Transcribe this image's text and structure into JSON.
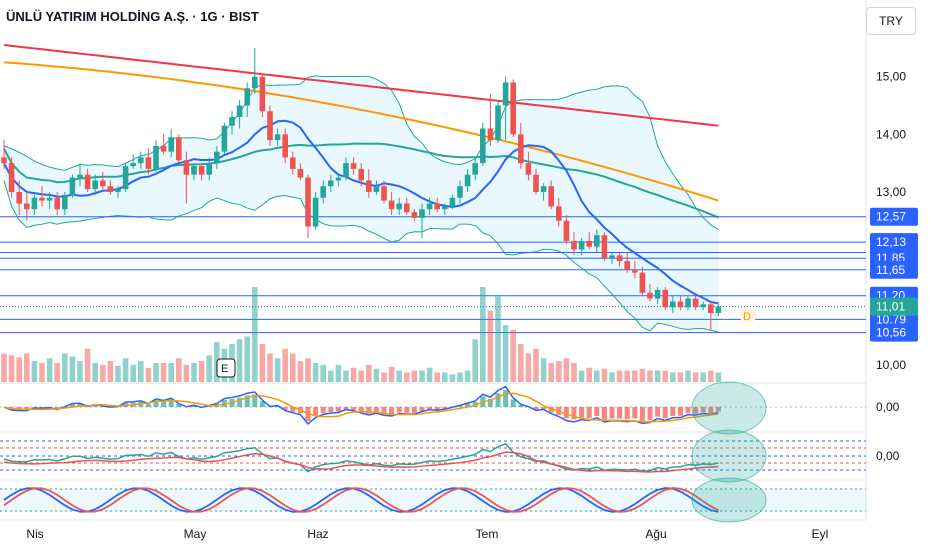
{
  "header": {
    "title": "ÜNLÜ YATIRIM HOLDİNG A.Ş. · 1G · BIST",
    "currency": "TRY"
  },
  "colors": {
    "up": "#26a69a",
    "down": "#ef5350",
    "ma_fast": "#f23645",
    "ma_slow": "#ff9800",
    "ma_mid": "#26a69a",
    "ma_blue": "#2962ff",
    "band": "#26a69a",
    "level": "#2962ff"
  },
  "chart_data": {
    "type": "candlestick",
    "price_axis": {
      "ticks": [
        "15,00",
        "14,00",
        "13,00",
        "10,00"
      ],
      "tick_values": [
        15,
        14,
        13,
        10
      ],
      "range": [
        9.98,
        15.55
      ]
    },
    "time_axis": {
      "labels": [
        "Nis",
        "May",
        "Haz",
        "Tem",
        "Ağu",
        "Eyl"
      ]
    },
    "horizontal_levels": [
      {
        "label": "12,57",
        "value": 12.57
      },
      {
        "label": "12,13",
        "value": 12.13
      },
      {
        "label": "11,85",
        "value": 11.85
      },
      {
        "label": "11,65",
        "value": 11.65
      },
      {
        "label": "11,20",
        "value": 11.2
      },
      {
        "label": "10,79",
        "value": 10.79
      },
      {
        "label": "10,56",
        "value": 10.56
      }
    ],
    "extra_levels": [
      11.95,
      11.01
    ],
    "current_price": {
      "label": "11,01",
      "value": 11.01
    },
    "markers": {
      "earnings": "E",
      "dividend": "D"
    },
    "indicator_labels": [
      "0,00",
      "0,00"
    ],
    "candles": [
      [
        13.6,
        13.9,
        13.4,
        13.5
      ],
      [
        13.5,
        13.6,
        12.9,
        13.0
      ],
      [
        13.0,
        13.2,
        12.6,
        12.8
      ],
      [
        12.8,
        13.0,
        12.5,
        12.7
      ],
      [
        12.7,
        12.95,
        12.6,
        12.9
      ],
      [
        12.9,
        13.1,
        12.75,
        12.85
      ],
      [
        12.85,
        13.0,
        12.7,
        12.9
      ],
      [
        12.9,
        13.0,
        12.6,
        12.7
      ],
      [
        12.7,
        13.0,
        12.6,
        12.95
      ],
      [
        12.95,
        13.3,
        12.9,
        13.25
      ],
      [
        13.25,
        13.5,
        13.1,
        13.3
      ],
      [
        13.3,
        13.4,
        13.0,
        13.05
      ],
      [
        13.05,
        13.3,
        12.95,
        13.2
      ],
      [
        13.2,
        13.35,
        13.0,
        13.1
      ],
      [
        13.1,
        13.2,
        12.95,
        13.0
      ],
      [
        13.0,
        13.1,
        12.9,
        13.05
      ],
      [
        13.05,
        13.5,
        13.0,
        13.45
      ],
      [
        13.45,
        13.65,
        13.4,
        13.5
      ],
      [
        13.5,
        13.7,
        13.4,
        13.6
      ],
      [
        13.6,
        13.75,
        13.3,
        13.4
      ],
      [
        13.4,
        13.9,
        13.35,
        13.8
      ],
      [
        13.8,
        14.0,
        13.65,
        13.7
      ],
      [
        13.7,
        14.1,
        13.6,
        13.95
      ],
      [
        13.95,
        14.0,
        13.5,
        13.55
      ],
      [
        13.55,
        13.7,
        12.8,
        13.3
      ],
      [
        13.3,
        13.5,
        13.2,
        13.45
      ],
      [
        13.45,
        13.5,
        13.2,
        13.3
      ],
      [
        13.3,
        13.6,
        13.2,
        13.5
      ],
      [
        13.5,
        13.8,
        13.4,
        13.7
      ],
      [
        13.7,
        14.2,
        13.65,
        14.15
      ],
      [
        14.15,
        14.4,
        14.0,
        14.3
      ],
      [
        14.3,
        14.6,
        14.1,
        14.5
      ],
      [
        14.5,
        14.9,
        14.3,
        14.8
      ],
      [
        14.8,
        15.5,
        14.7,
        15.0
      ],
      [
        15.0,
        15.05,
        14.3,
        14.4
      ],
      [
        14.4,
        14.5,
        13.8,
        13.9
      ],
      [
        13.9,
        14.1,
        13.8,
        14.0
      ],
      [
        14.0,
        14.1,
        13.5,
        13.6
      ],
      [
        13.6,
        13.7,
        13.3,
        13.4
      ],
      [
        13.4,
        13.5,
        13.2,
        13.25
      ],
      [
        13.25,
        13.3,
        12.2,
        12.4
      ],
      [
        12.4,
        13.0,
        12.35,
        12.9
      ],
      [
        12.9,
        13.2,
        12.8,
        13.1
      ],
      [
        13.1,
        13.3,
        13.0,
        13.2
      ],
      [
        13.2,
        13.3,
        13.1,
        13.25
      ],
      [
        13.25,
        13.6,
        13.2,
        13.5
      ],
      [
        13.5,
        13.6,
        13.3,
        13.4
      ],
      [
        13.4,
        13.5,
        13.1,
        13.2
      ],
      [
        13.2,
        13.4,
        12.9,
        13.0
      ],
      [
        13.0,
        13.2,
        12.95,
        13.1
      ],
      [
        13.1,
        13.2,
        12.8,
        12.85
      ],
      [
        12.85,
        13.0,
        12.6,
        12.7
      ],
      [
        12.7,
        12.9,
        12.6,
        12.8
      ],
      [
        12.8,
        12.9,
        12.6,
        12.65
      ],
      [
        12.65,
        12.7,
        12.5,
        12.55
      ],
      [
        12.55,
        12.8,
        12.2,
        12.7
      ],
      [
        12.7,
        12.9,
        12.6,
        12.8
      ],
      [
        12.8,
        12.9,
        12.65,
        12.7
      ],
      [
        12.7,
        12.8,
        12.6,
        12.75
      ],
      [
        12.75,
        12.95,
        12.7,
        12.9
      ],
      [
        12.9,
        13.2,
        12.8,
        13.1
      ],
      [
        13.1,
        13.4,
        13.0,
        13.3
      ],
      [
        13.3,
        13.6,
        13.2,
        13.5
      ],
      [
        13.5,
        14.2,
        13.45,
        14.1
      ],
      [
        14.1,
        14.7,
        13.8,
        13.9
      ],
      [
        13.9,
        14.6,
        13.85,
        14.5
      ],
      [
        14.5,
        15.0,
        13.9,
        14.9
      ],
      [
        14.9,
        14.95,
        13.95,
        14.0
      ],
      [
        14.0,
        14.2,
        13.4,
        13.5
      ],
      [
        13.5,
        13.7,
        13.2,
        13.3
      ],
      [
        13.3,
        13.4,
        12.95,
        13.0
      ],
      [
        13.0,
        13.15,
        12.85,
        13.1
      ],
      [
        13.1,
        13.2,
        12.7,
        12.75
      ],
      [
        12.75,
        12.9,
        12.4,
        12.5
      ],
      [
        12.5,
        12.6,
        12.1,
        12.15
      ],
      [
        12.15,
        12.3,
        11.9,
        12.0
      ],
      [
        12.0,
        12.2,
        11.9,
        12.15
      ],
      [
        12.15,
        12.3,
        12.0,
        12.05
      ],
      [
        12.05,
        12.35,
        11.95,
        12.25
      ],
      [
        12.25,
        12.3,
        11.8,
        11.85
      ],
      [
        11.85,
        11.95,
        11.75,
        11.9
      ],
      [
        11.9,
        11.95,
        11.7,
        11.8
      ],
      [
        11.8,
        11.95,
        11.6,
        11.65
      ],
      [
        11.65,
        11.8,
        11.5,
        11.6
      ],
      [
        11.6,
        11.7,
        11.2,
        11.25
      ],
      [
        11.25,
        11.4,
        11.1,
        11.15
      ],
      [
        11.15,
        11.35,
        11.05,
        11.3
      ],
      [
        11.3,
        11.35,
        10.95,
        11.0
      ],
      [
        11.0,
        11.2,
        10.9,
        11.1
      ],
      [
        11.1,
        11.2,
        10.95,
        11.0
      ],
      [
        11.0,
        11.2,
        10.95,
        11.15
      ],
      [
        11.15,
        11.2,
        10.95,
        11.0
      ],
      [
        11.0,
        11.1,
        10.95,
        11.05
      ],
      [
        11.05,
        11.1,
        10.6,
        10.9
      ],
      [
        10.9,
        11.05,
        10.85,
        11.01
      ]
    ],
    "volumes": [
      0.3,
      0.28,
      0.26,
      0.3,
      0.22,
      0.2,
      0.25,
      0.2,
      0.3,
      0.27,
      0.22,
      0.35,
      0.2,
      0.18,
      0.22,
      0.17,
      0.25,
      0.18,
      0.22,
      0.15,
      0.2,
      0.2,
      0.2,
      0.25,
      0.18,
      0.2,
      0.22,
      0.28,
      0.42,
      0.35,
      0.4,
      0.45,
      0.48,
      1.0,
      0.4,
      0.3,
      0.25,
      0.35,
      0.3,
      0.22,
      0.25,
      0.2,
      0.18,
      0.12,
      0.18,
      0.12,
      0.15,
      0.12,
      0.18,
      0.14,
      0.1,
      0.16,
      0.12,
      0.1,
      0.12,
      0.12,
      0.15,
      0.1,
      0.1,
      0.08,
      0.1,
      0.12,
      0.45,
      1.0,
      0.75,
      0.9,
      0.6,
      0.55,
      0.4,
      0.3,
      0.35,
      0.25,
      0.2,
      0.22,
      0.25,
      0.2,
      0.12,
      0.15,
      0.12,
      0.14,
      0.1,
      0.12,
      0.12,
      0.12,
      0.14,
      0.12,
      0.12,
      0.12,
      0.1,
      0.1,
      0.12,
      0.1,
      0.1,
      0.12,
      0.1
    ]
  }
}
